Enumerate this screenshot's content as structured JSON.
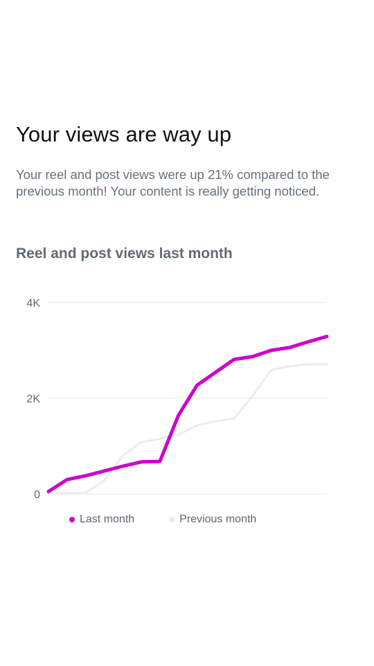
{
  "headline": "Your views are way up",
  "subtext": "Your reel and post views were up 21% compared to the previous month! Your content is really getting noticed.",
  "chart_title": "Reel and post views last month",
  "chart_data": {
    "type": "line",
    "title": "Reel and post views last month",
    "ylim": [
      0,
      4000
    ],
    "y_ticks": [
      0,
      2000,
      4000
    ],
    "y_tick_labels": [
      "0",
      "2K",
      "4K"
    ],
    "grid": true,
    "legend": "bottom",
    "x": [
      1,
      2,
      3,
      4,
      5,
      6,
      7,
      8,
      9,
      10,
      11,
      12,
      13,
      14,
      15,
      16
    ],
    "series": [
      {
        "name": "Last month",
        "color": "#cc00cc",
        "values": [
          50,
          300,
          380,
          480,
          580,
          670,
          680,
          1640,
          2270,
          2540,
          2810,
          2870,
          3000,
          3060,
          3180,
          3290
        ]
      },
      {
        "name": "Previous month",
        "color": "#ececec",
        "values": [
          20,
          20,
          20,
          280,
          800,
          1080,
          1150,
          1240,
          1430,
          1520,
          1580,
          2050,
          2590,
          2670,
          2710,
          2710
        ]
      }
    ]
  }
}
